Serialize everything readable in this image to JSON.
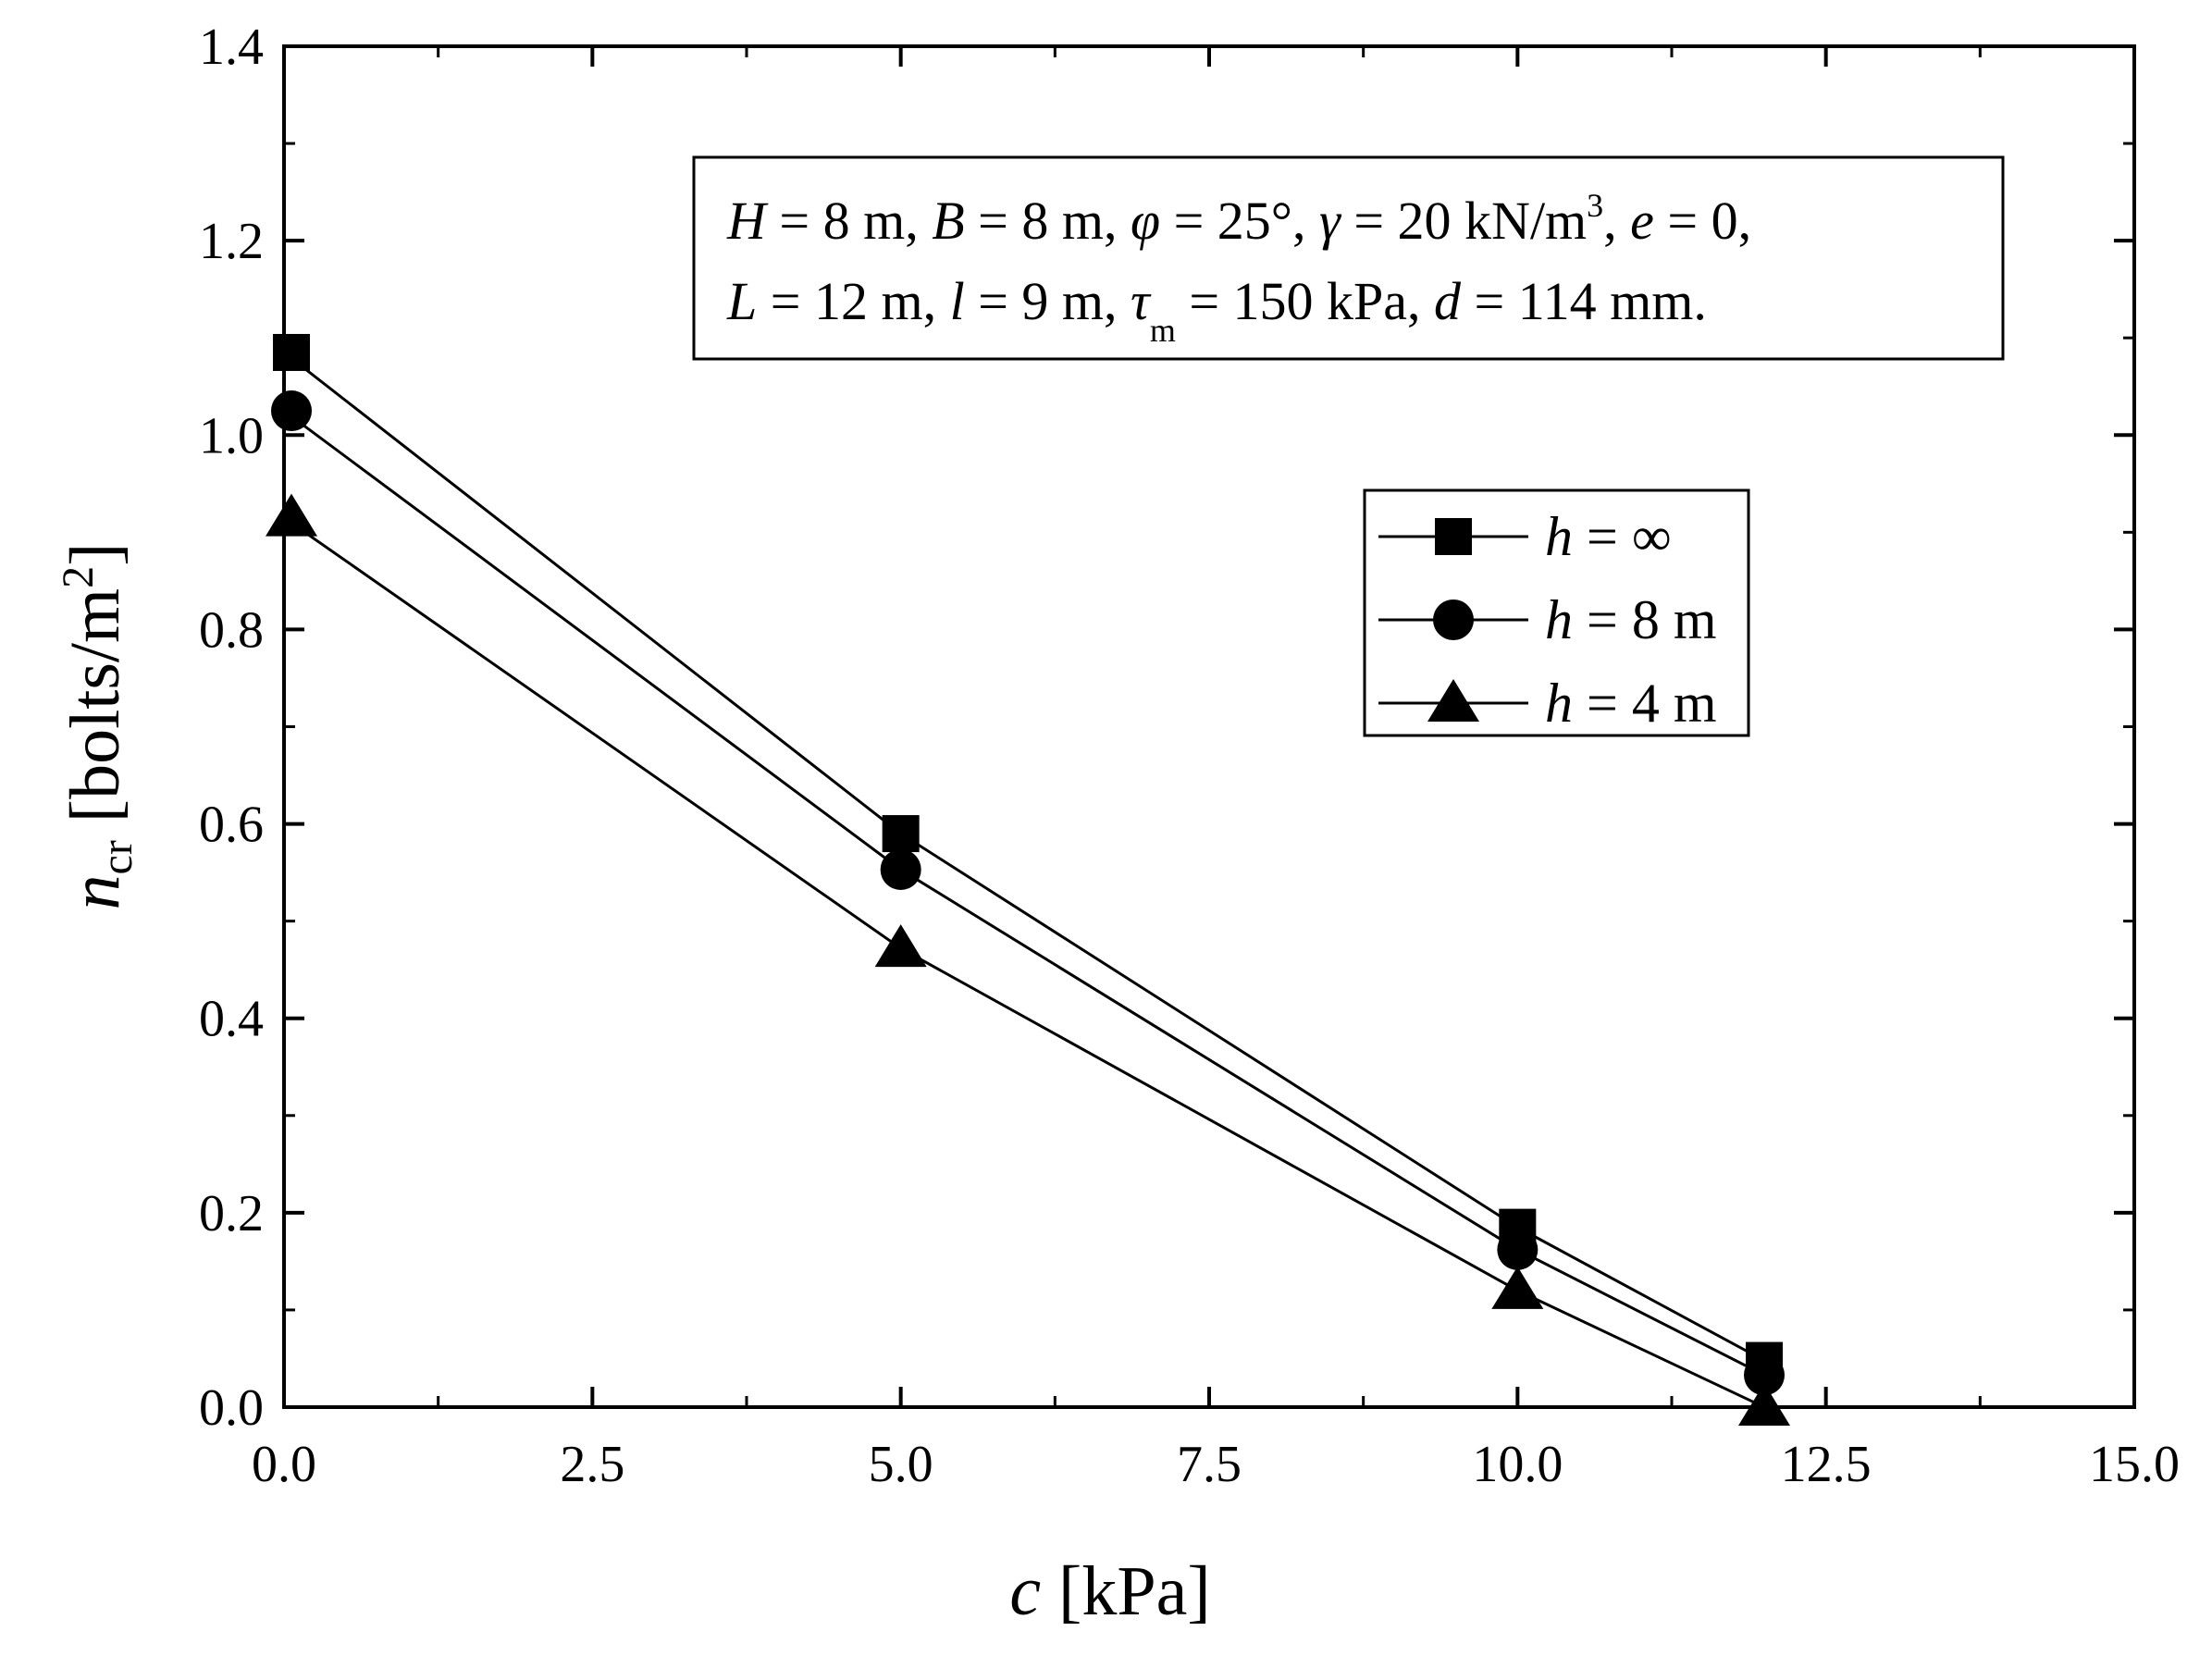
{
  "chart_data": {
    "type": "line",
    "xlabel": {
      "symbol": "c",
      "unit": " [kPa]"
    },
    "ylabel": {
      "symbol": "n",
      "subscript": "cr",
      "unit": " [bolts/m",
      "unit_sup": "2",
      "unit_end": "]"
    },
    "xlim": [
      0,
      15
    ],
    "ylim": [
      0,
      1.4
    ],
    "x_ticks": [
      "0.0",
      "2.5",
      "5.0",
      "7.5",
      "10.0",
      "12.5",
      "15.0"
    ],
    "y_ticks": [
      "0.0",
      "0.2",
      "0.4",
      "0.6",
      "0.8",
      "1.0",
      "1.2",
      "1.4"
    ],
    "grid": false,
    "legend_position": "right",
    "series": [
      {
        "name": "h = ∞",
        "name_var": "h",
        "name_rest": " = ∞",
        "marker": "square",
        "x": [
          0,
          5,
          10,
          12
        ],
        "y": [
          1.085,
          0.59,
          0.185,
          0.048
        ]
      },
      {
        "name": "h = 8 m",
        "name_var": "h",
        "name_rest": " = 8 m",
        "marker": "circle",
        "x": [
          0,
          5,
          10,
          12
        ],
        "y": [
          1.025,
          0.553,
          0.162,
          0.033
        ]
      },
      {
        "name": "h = 4 m",
        "name_var": "h",
        "name_rest": " = 4 m",
        "marker": "triangle",
        "x": [
          0,
          5,
          10,
          12
        ],
        "y": [
          0.915,
          0.472,
          0.12,
          0.0
        ]
      }
    ],
    "annotation": {
      "line1": "H = 8 m, B = 8 m, φ = 25°, γ = 20 kN/m3, e = 0,",
      "line2": "L = 12 m, l = 9 m, τm = 150 kPa, d = 114 mm."
    }
  }
}
